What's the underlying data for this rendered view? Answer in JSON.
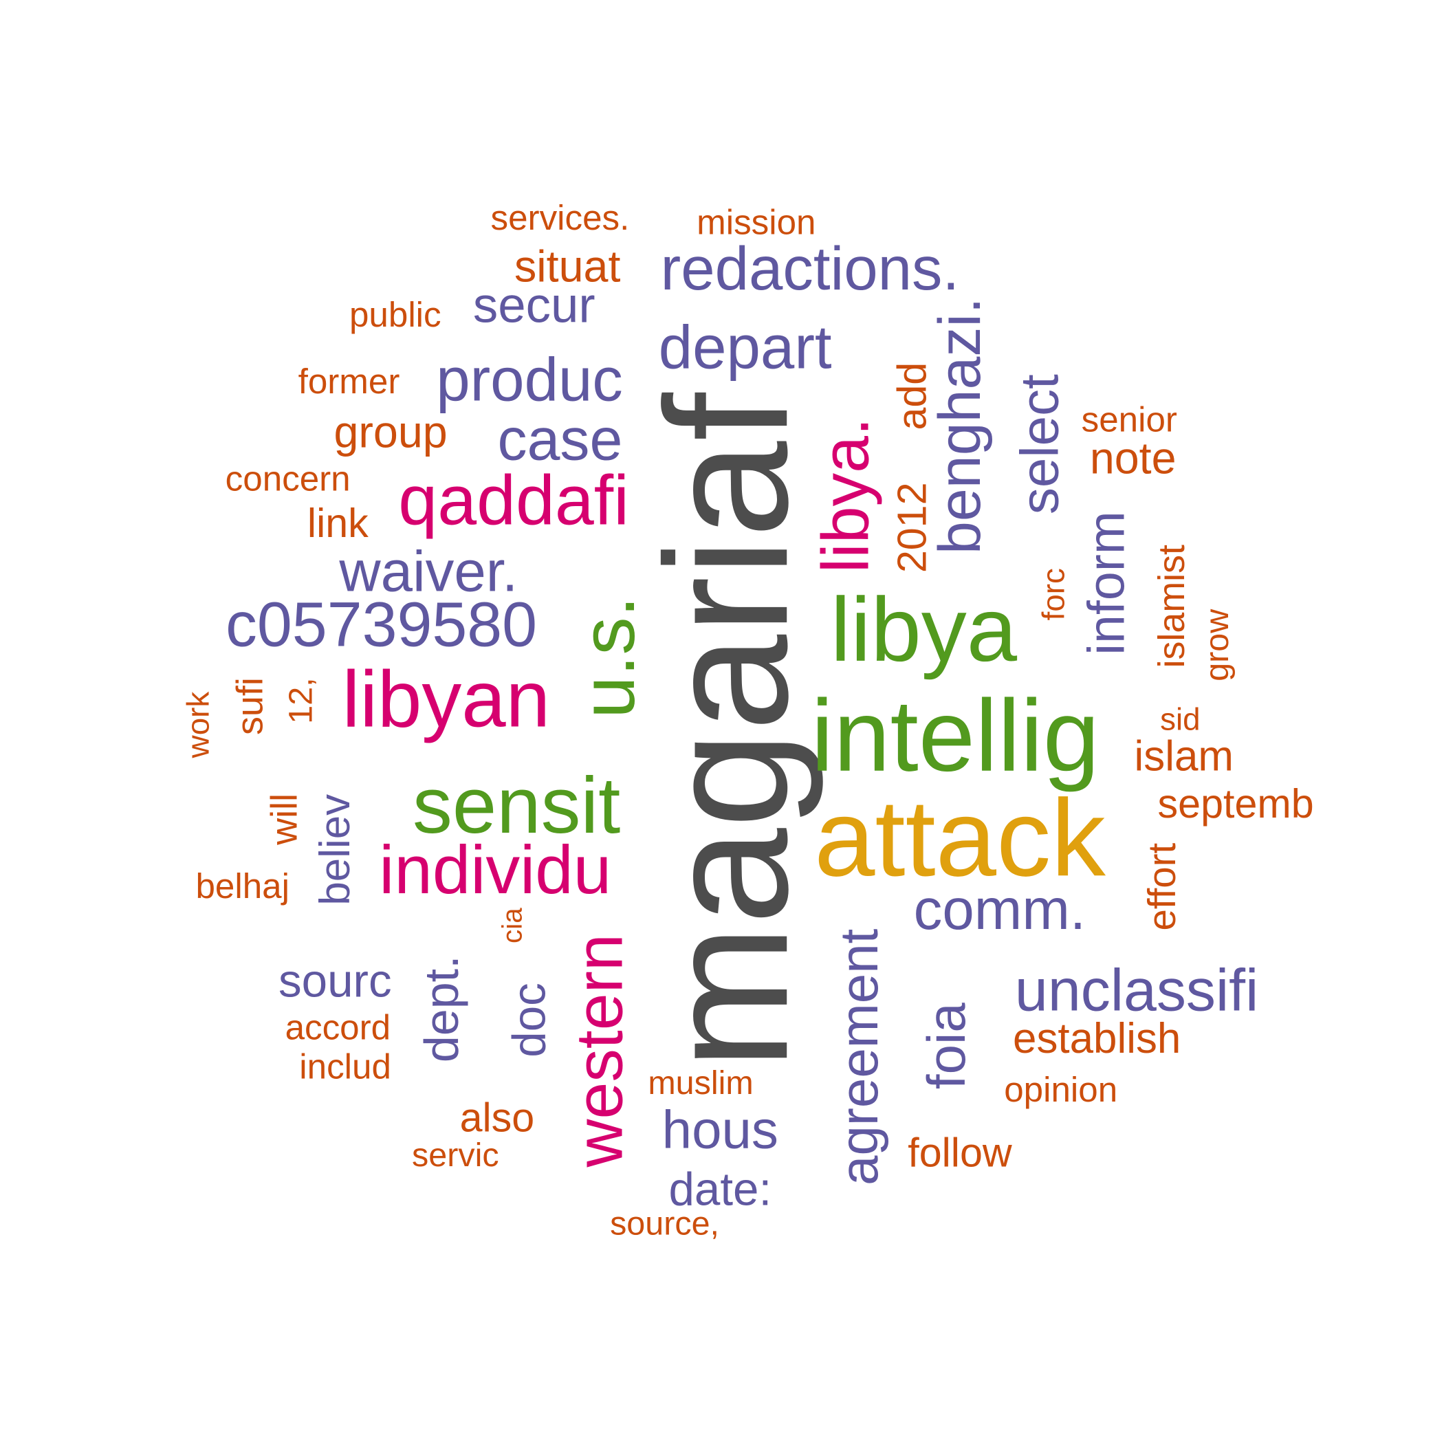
{
  "palette": {
    "gray": "#4d4d4d",
    "gold": "#e0a00e",
    "green": "#529a1e",
    "magenta": "#d6006f",
    "purple": "#5f58a0",
    "orange": "#cc4e0c"
  },
  "words": [
    {
      "text": "magariaf",
      "color": "gray"
    },
    {
      "text": "attack",
      "color": "gold"
    },
    {
      "text": "intellig",
      "color": "green"
    },
    {
      "text": "libya",
      "color": "green"
    },
    {
      "text": "u.s.",
      "color": "green"
    },
    {
      "text": "sensit",
      "color": "green"
    },
    {
      "text": "libyan",
      "color": "magenta"
    },
    {
      "text": "qaddafi",
      "color": "magenta"
    },
    {
      "text": "libya.",
      "color": "magenta"
    },
    {
      "text": "individu",
      "color": "magenta"
    },
    {
      "text": "western",
      "color": "magenta"
    },
    {
      "text": "redactions.",
      "color": "purple"
    },
    {
      "text": "depart",
      "color": "purple"
    },
    {
      "text": "produc",
      "color": "purple"
    },
    {
      "text": "case",
      "color": "purple"
    },
    {
      "text": "secur",
      "color": "purple"
    },
    {
      "text": "waiver.",
      "color": "purple"
    },
    {
      "text": "c05739580",
      "color": "purple"
    },
    {
      "text": "benghazi.",
      "color": "purple"
    },
    {
      "text": "select",
      "color": "purple"
    },
    {
      "text": "inform",
      "color": "purple"
    },
    {
      "text": "comm.",
      "color": "purple"
    },
    {
      "text": "unclassifi",
      "color": "purple"
    },
    {
      "text": "agreement",
      "color": "purple"
    },
    {
      "text": "foia",
      "color": "purple"
    },
    {
      "text": "hous",
      "color": "purple"
    },
    {
      "text": "date:",
      "color": "purple"
    },
    {
      "text": "sourc",
      "color": "purple"
    },
    {
      "text": "dept.",
      "color": "purple"
    },
    {
      "text": "doc",
      "color": "purple"
    },
    {
      "text": "believ",
      "color": "purple"
    },
    {
      "text": "services.",
      "color": "orange"
    },
    {
      "text": "mission",
      "color": "orange"
    },
    {
      "text": "situat",
      "color": "orange"
    },
    {
      "text": "public",
      "color": "orange"
    },
    {
      "text": "former",
      "color": "orange"
    },
    {
      "text": "group",
      "color": "orange"
    },
    {
      "text": "concern",
      "color": "orange"
    },
    {
      "text": "link",
      "color": "orange"
    },
    {
      "text": "2012",
      "color": "orange"
    },
    {
      "text": "add",
      "color": "orange"
    },
    {
      "text": "senior",
      "color": "orange"
    },
    {
      "text": "note",
      "color": "orange"
    },
    {
      "text": "forc",
      "color": "orange"
    },
    {
      "text": "islamist",
      "color": "orange"
    },
    {
      "text": "grow",
      "color": "orange"
    },
    {
      "text": "sid",
      "color": "orange"
    },
    {
      "text": "islam",
      "color": "orange"
    },
    {
      "text": "septemb",
      "color": "orange"
    },
    {
      "text": "effort",
      "color": "orange"
    },
    {
      "text": "work",
      "color": "orange"
    },
    {
      "text": "sufi",
      "color": "orange"
    },
    {
      "text": "12,",
      "color": "orange"
    },
    {
      "text": "will",
      "color": "orange"
    },
    {
      "text": "belhaj",
      "color": "orange"
    },
    {
      "text": "cia",
      "color": "orange"
    },
    {
      "text": "accord",
      "color": "orange"
    },
    {
      "text": "includ",
      "color": "orange"
    },
    {
      "text": "also",
      "color": "orange"
    },
    {
      "text": "servic",
      "color": "orange"
    },
    {
      "text": "muslim",
      "color": "orange"
    },
    {
      "text": "source,",
      "color": "orange"
    },
    {
      "text": "establish",
      "color": "orange"
    },
    {
      "text": "opinion",
      "color": "orange"
    },
    {
      "text": "follow",
      "color": "orange"
    }
  ]
}
